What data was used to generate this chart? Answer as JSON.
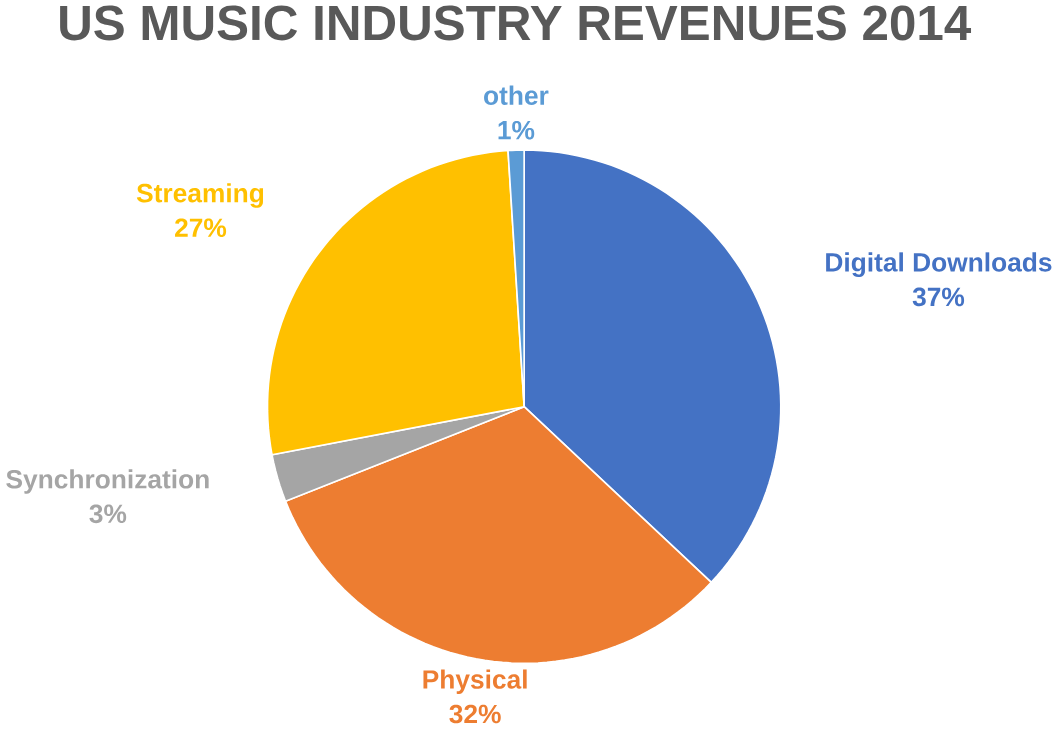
{
  "chart_data": {
    "type": "pie",
    "title": "US MUSIC INDUSTRY REVENUES 2014",
    "categories": [
      "Digital Downloads",
      "Physical",
      "Synchronization",
      "Streaming",
      "other"
    ],
    "values": [
      37,
      32,
      3,
      27,
      1
    ],
    "value_labels": [
      "37%",
      "32%",
      "3%",
      "27%",
      "1%"
    ],
    "colors": [
      "#4472c4",
      "#ed7d31",
      "#a5a5a5",
      "#ffc000",
      "#5b9bd5"
    ]
  }
}
